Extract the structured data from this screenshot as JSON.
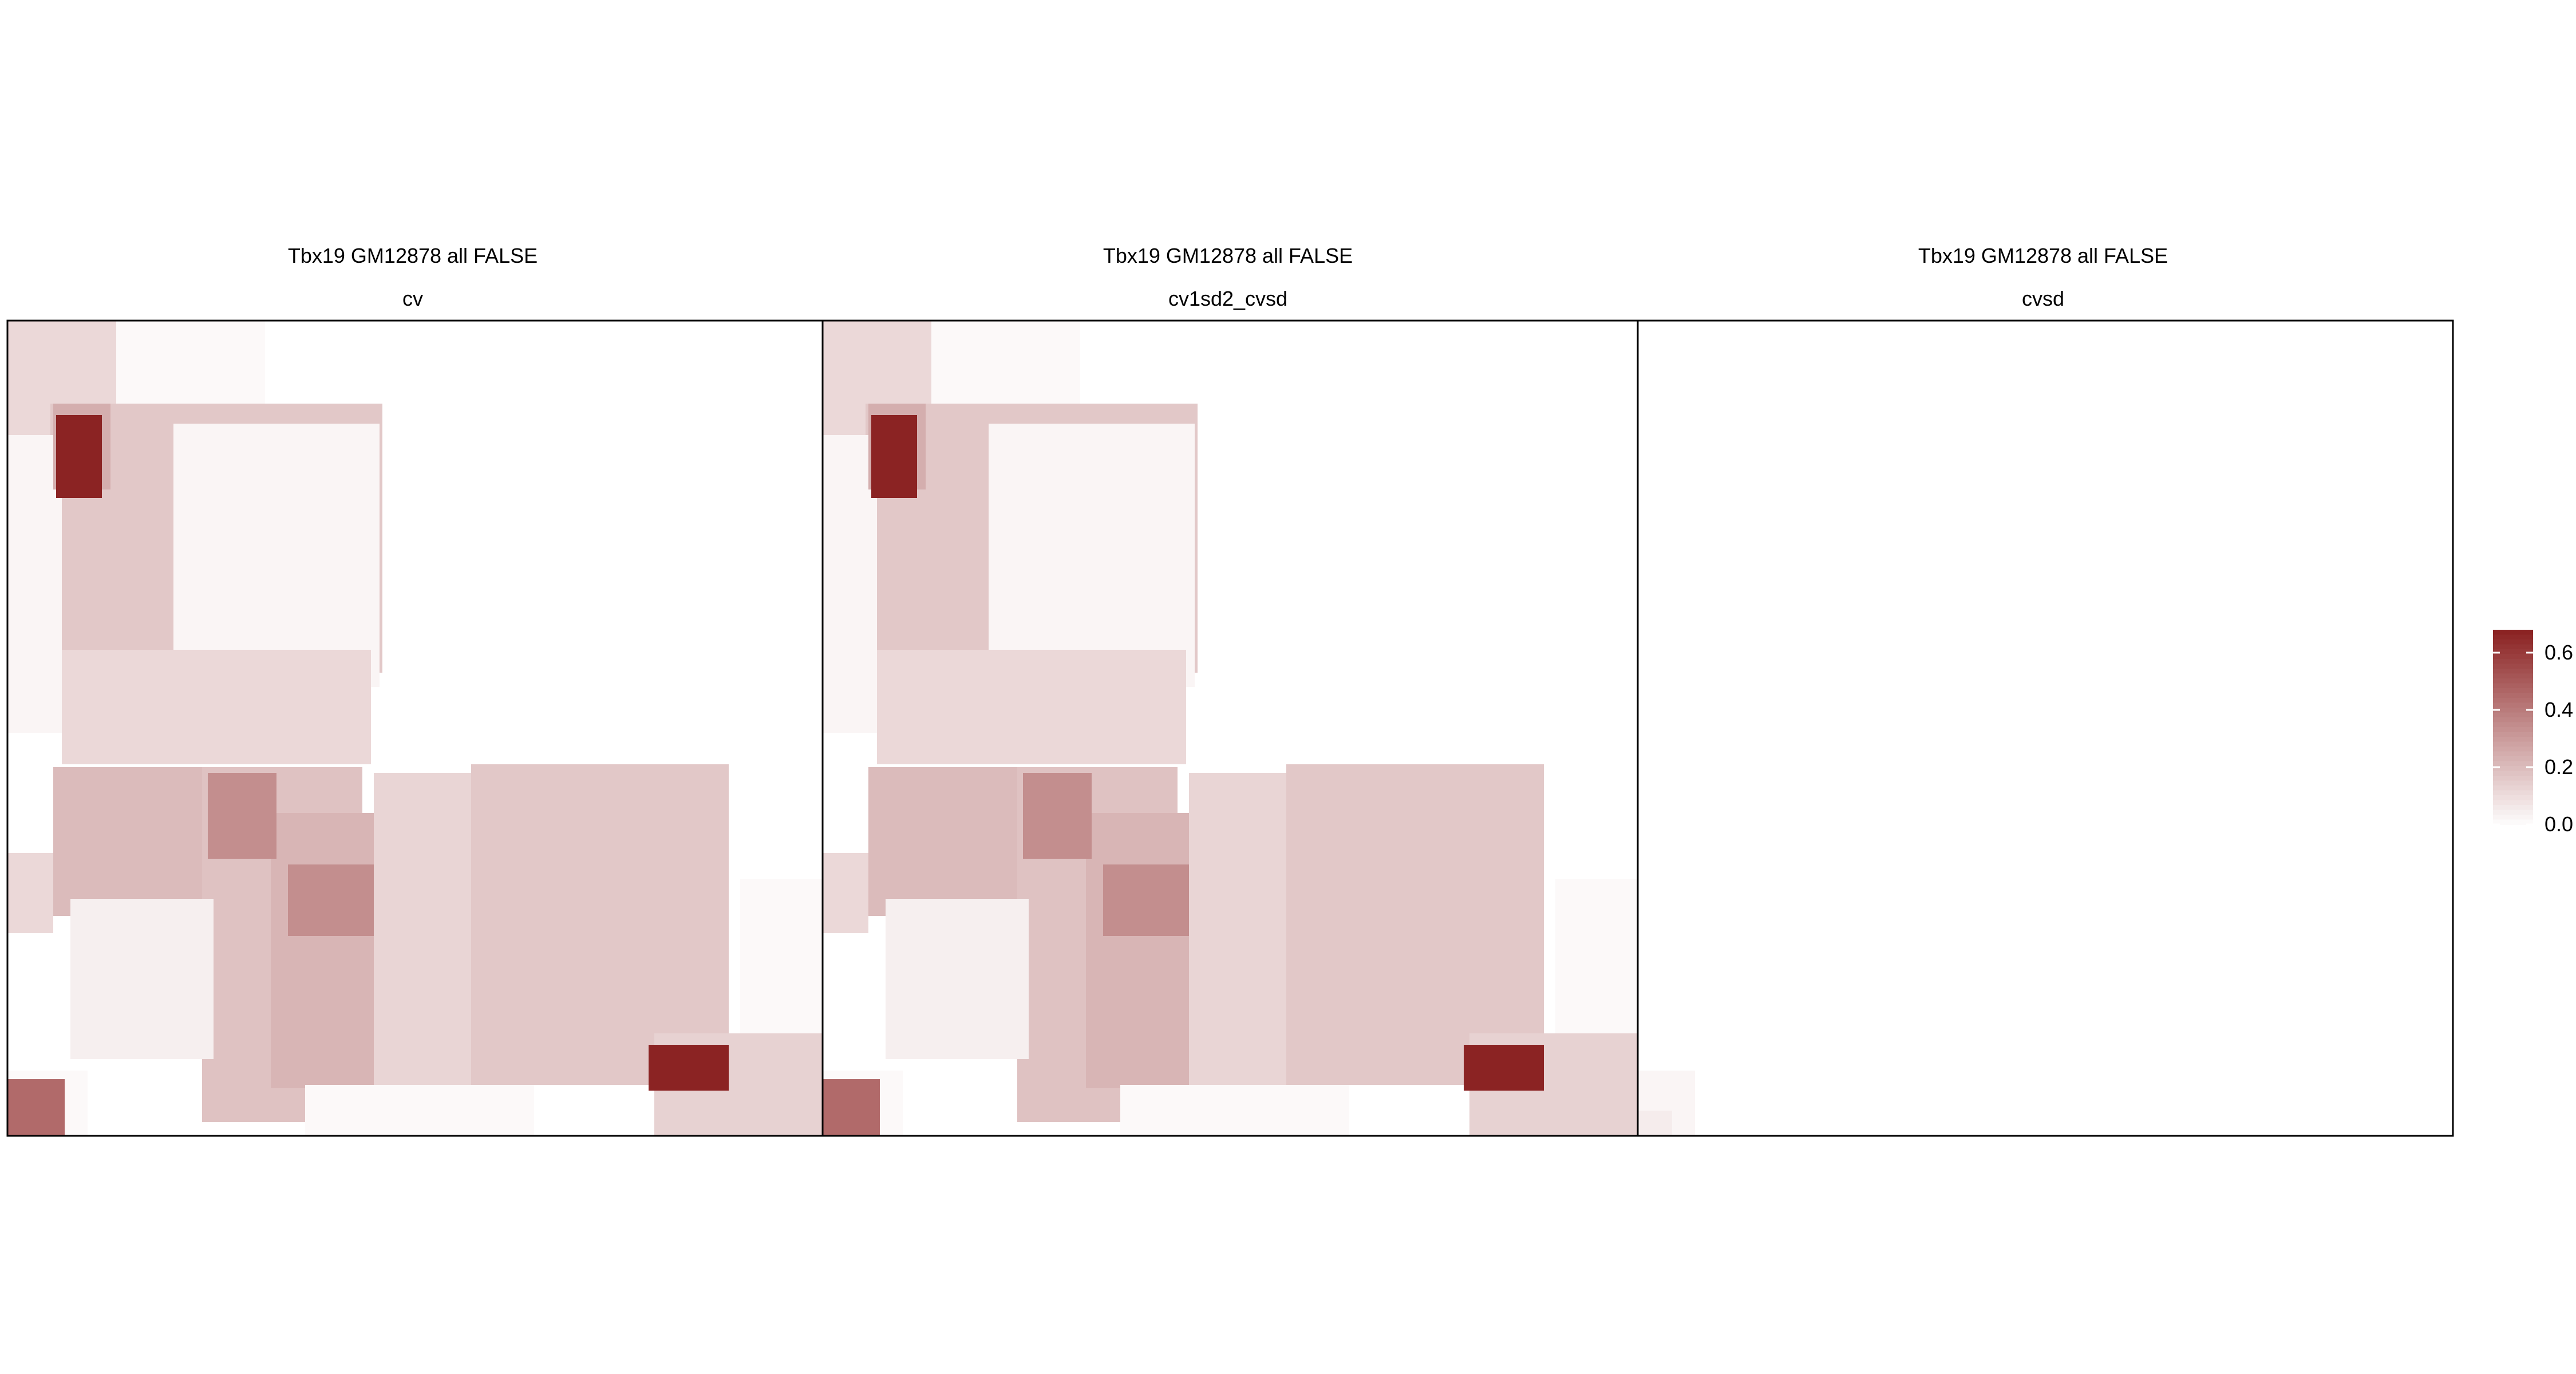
{
  "chart_data": [
    {
      "type": "heatmap",
      "title": "Tbx19 GM12878 all FALSE",
      "subtitle": "cv",
      "grid": false,
      "colorscale": {
        "low": "#ffffff",
        "high": "#8b2323",
        "min": 0.0,
        "max": 0.68
      }
    },
    {
      "type": "heatmap",
      "title": "Tbx19 GM12878 all FALSE",
      "subtitle": "cv1sd2_cvsd",
      "grid": false,
      "colorscale": {
        "low": "#ffffff",
        "high": "#8b2323",
        "min": 0.0,
        "max": 0.68
      }
    },
    {
      "type": "heatmap",
      "title": "Tbx19 GM12878 all FALSE",
      "subtitle": "cvsd",
      "grid": false,
      "colorscale": {
        "low": "#ffffff",
        "high": "#8b2323",
        "min": 0.0,
        "max": 0.68
      }
    }
  ],
  "legend": {
    "placement": "right",
    "ticks": [
      {
        "value": 0.0,
        "label": "0.0"
      },
      {
        "value": 0.2,
        "label": "0.2"
      },
      {
        "value": 0.4,
        "label": "0.4"
      },
      {
        "value": 0.6,
        "label": "0.6"
      }
    ]
  }
}
